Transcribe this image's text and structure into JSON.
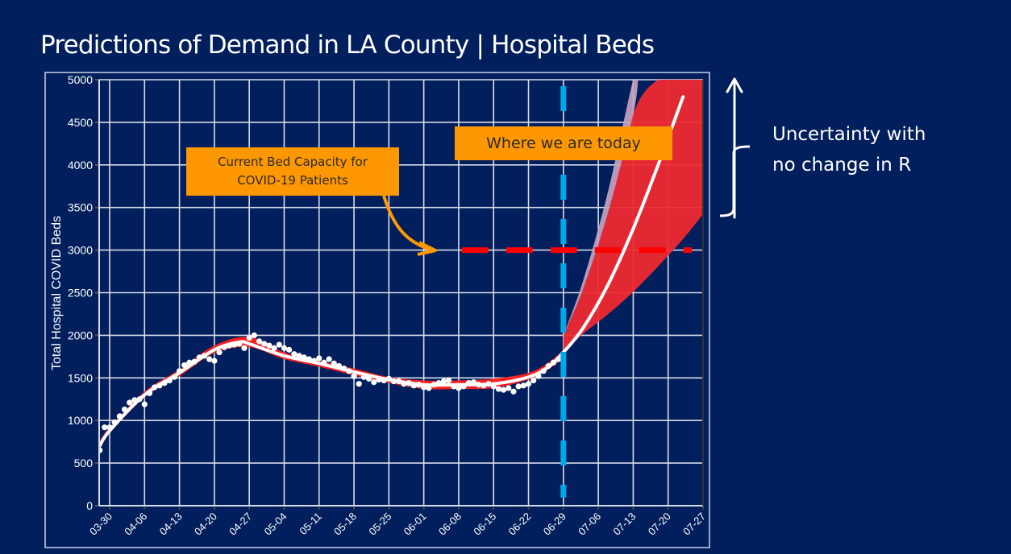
{
  "slide": {
    "title": "Predictions of Demand in LA County | Hospital Beds",
    "background_color": "#001f5c"
  },
  "annotations": {
    "capacity_callout": {
      "line1": "Current Bed Capacity for",
      "line2": "COVID-19 Patients",
      "color": "#ff9800"
    },
    "today_callout": {
      "text": "Where we are today",
      "color": "#ff9800"
    },
    "uncertainty": {
      "line1": "Uncertainty with",
      "line2": "no change in R"
    }
  },
  "chart_data": {
    "type": "line",
    "title": "Predictions of Demand in LA County | Hospital Beds",
    "xlabel": "",
    "ylabel": "Total Hospital COVID Beds",
    "ylim": [
      0,
      5000
    ],
    "yticks": [
      0,
      500,
      1000,
      1500,
      2000,
      2500,
      3000,
      3500,
      4000,
      4500,
      5000
    ],
    "xtick_labels": [
      "03-30",
      "04-06",
      "04-13",
      "04-20",
      "04-27",
      "05-04",
      "05-11",
      "05-18",
      "05-25",
      "06-01",
      "06-08",
      "06-15",
      "06-22",
      "06-29",
      "07-06",
      "07-13",
      "07-20",
      "07-27"
    ],
    "x_unit": "days since 03-30",
    "xlim": [
      -2,
      119
    ],
    "grid": true,
    "capacity_line": {
      "value": 3000,
      "label": "Current Bed Capacity for COVID-19 Patients",
      "x_start": 4,
      "x_end": 119,
      "color": "#ff0000"
    },
    "today_line": {
      "x": 91,
      "label": "06-29",
      "color": "#00a8e8"
    },
    "series": [
      {
        "name": "Observed",
        "kind": "scatter",
        "color": "#ffffff",
        "points": [
          [
            -2,
            650
          ],
          [
            -1,
            920
          ],
          [
            0,
            920
          ],
          [
            1,
            980
          ],
          [
            2,
            1050
          ],
          [
            3,
            1130
          ],
          [
            4,
            1210
          ],
          [
            5,
            1240
          ],
          [
            6,
            1250
          ],
          [
            7,
            1190
          ],
          [
            8,
            1320
          ],
          [
            9,
            1390
          ],
          [
            10,
            1410
          ],
          [
            11,
            1440
          ],
          [
            12,
            1470
          ],
          [
            13,
            1510
          ],
          [
            14,
            1580
          ],
          [
            15,
            1650
          ],
          [
            16,
            1680
          ],
          [
            17,
            1690
          ],
          [
            18,
            1740
          ],
          [
            19,
            1760
          ],
          [
            20,
            1720
          ],
          [
            21,
            1700
          ],
          [
            22,
            1800
          ],
          [
            23,
            1860
          ],
          [
            24,
            1880
          ],
          [
            25,
            1890
          ],
          [
            26,
            1900
          ],
          [
            27,
            1850
          ],
          [
            28,
            1970
          ],
          [
            29,
            2000
          ],
          [
            30,
            1930
          ],
          [
            31,
            1900
          ],
          [
            32,
            1880
          ],
          [
            33,
            1850
          ],
          [
            34,
            1890
          ],
          [
            35,
            1850
          ],
          [
            36,
            1830
          ],
          [
            37,
            1780
          ],
          [
            38,
            1760
          ],
          [
            39,
            1740
          ],
          [
            40,
            1720
          ],
          [
            41,
            1700
          ],
          [
            42,
            1730
          ],
          [
            43,
            1680
          ],
          [
            44,
            1720
          ],
          [
            45,
            1670
          ],
          [
            46,
            1640
          ],
          [
            47,
            1610
          ],
          [
            48,
            1580
          ],
          [
            49,
            1520
          ],
          [
            50,
            1430
          ],
          [
            51,
            1510
          ],
          [
            52,
            1490
          ],
          [
            53,
            1450
          ],
          [
            54,
            1480
          ],
          [
            55,
            1470
          ],
          [
            56,
            1490
          ],
          [
            57,
            1460
          ],
          [
            58,
            1460
          ],
          [
            59,
            1430
          ],
          [
            60,
            1440
          ],
          [
            61,
            1410
          ],
          [
            62,
            1420
          ],
          [
            63,
            1390
          ],
          [
            64,
            1380
          ],
          [
            65,
            1420
          ],
          [
            66,
            1440
          ],
          [
            67,
            1460
          ],
          [
            68,
            1470
          ],
          [
            69,
            1400
          ],
          [
            70,
            1380
          ],
          [
            71,
            1400
          ],
          [
            72,
            1440
          ],
          [
            73,
            1450
          ],
          [
            74,
            1420
          ],
          [
            75,
            1410
          ],
          [
            76,
            1430
          ],
          [
            77,
            1400
          ],
          [
            78,
            1370
          ],
          [
            79,
            1360
          ],
          [
            80,
            1380
          ],
          [
            81,
            1340
          ],
          [
            82,
            1400
          ],
          [
            83,
            1410
          ],
          [
            84,
            1430
          ],
          [
            85,
            1470
          ],
          [
            86,
            1520
          ],
          [
            87,
            1580
          ],
          [
            88,
            1640
          ],
          [
            89,
            1680
          ],
          [
            90,
            1720
          ]
        ]
      },
      {
        "name": "Fit (historical band)",
        "kind": "band",
        "color": "#ff2020",
        "x": [
          -2,
          0,
          7,
          14,
          21,
          28,
          35,
          42,
          49,
          56,
          63,
          70,
          77,
          84,
          88,
          91
        ],
        "lower": [
          680,
          850,
          1270,
          1520,
          1790,
          1860,
          1720,
          1630,
          1530,
          1440,
          1370,
          1370,
          1380,
          1480,
          1600,
          1730
        ],
        "upper": [
          760,
          920,
          1340,
          1600,
          1880,
          1980,
          1800,
          1700,
          1610,
          1510,
          1470,
          1470,
          1490,
          1560,
          1680,
          1830
        ]
      },
      {
        "name": "Projection uncertainty (no change in R)",
        "kind": "band",
        "color": "#ee2a30",
        "x": [
          91,
          95,
          100,
          105,
          110,
          115,
          119
        ],
        "lower": [
          1800,
          2020,
          2250,
          2510,
          2810,
          3130,
          3420
        ],
        "upper": [
          2000,
          2550,
          3450,
          4600,
          5000,
          5000,
          5000
        ]
      },
      {
        "name": "Projection extreme upper",
        "kind": "band",
        "color": "#c9a4c0",
        "x": [
          91,
          95,
          100,
          105,
          106
        ],
        "lower": [
          2000,
          2550,
          3450,
          4600,
          5000
        ],
        "upper": [
          2000,
          2650,
          3700,
          5000,
          5000
        ]
      },
      {
        "name": "Median prediction",
        "kind": "line",
        "color": "#ffffff",
        "x": [
          -2,
          0,
          7,
          14,
          21,
          26,
          28,
          35,
          42,
          49,
          56,
          63,
          70,
          77,
          84,
          88,
          91,
          95,
          100,
          105,
          110,
          115
        ],
        "y": [
          700,
          880,
          1300,
          1560,
          1830,
          1920,
          1900,
          1760,
          1670,
          1570,
          1480,
          1420,
          1420,
          1430,
          1510,
          1630,
          1800,
          2090,
          2600,
          3250,
          4000,
          4800
        ]
      }
    ]
  }
}
